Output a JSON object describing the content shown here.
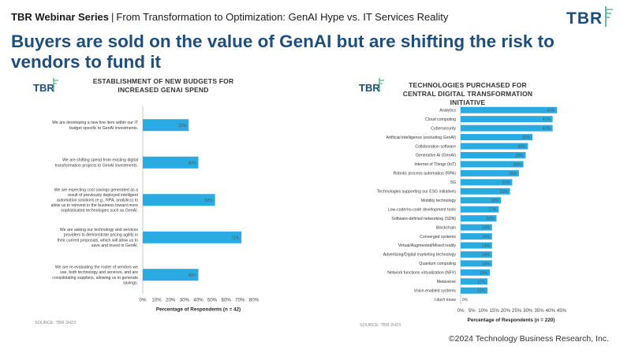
{
  "header": {
    "series": "TBR Webinar Series",
    "separator": "|",
    "subtitle": "From Transformation to Optimization: GenAI Hype vs. IT Services Reality"
  },
  "logo": {
    "text": "TBR"
  },
  "headline": "Buyers are sold on the value of GenAI but are shifting the risk to vendors to fund it",
  "colors": {
    "bar": "#29abe2",
    "title": "#1f4e79",
    "axis": "#bbbbbb"
  },
  "footer": "©2024 Technology Business Research, Inc.",
  "chart_data": [
    {
      "type": "bar",
      "orientation": "horizontal",
      "logo": "TBR",
      "title": "ESTABLISHMENT OF NEW BUDGETS FOR INCREASED GENAI SPEND",
      "categories": [
        "We are developing a new line item within our IT budget specific to GenAI investments.",
        "We are shifting spend from existing digital transformation projects to GenAI investments.",
        "We are expecting cost savings generated as a result of previously deployed intelligent automation solutions (e.g., RPA, analytics) to allow us to reinvest in the business toward more sophisticated technologies such as GenAI.",
        "We are asking our technology and services providers to demonstrate pricing agility in their current proposals, which will allow us to save and invest in GenAI.",
        "We are re-evaluating the roster of vendors we use, both technology and services, and are consolidating suppliers, allowing us to generate savings."
      ],
      "values": [
        33,
        40,
        52,
        71,
        40
      ],
      "value_labels": [
        "33%",
        "40%",
        "52%",
        "71%",
        "40%"
      ],
      "xlim": [
        0,
        80
      ],
      "xticks": [
        "0%",
        "10%",
        "20%",
        "30%",
        "40%",
        "50%",
        "60%",
        "70%",
        "80%"
      ],
      "xlabel": "Percentage of Respondents (n = 42)",
      "source": "SOURCE: TBR 2H23",
      "grid": false
    },
    {
      "type": "bar",
      "orientation": "horizontal",
      "logo": "TBR",
      "title": "TECHNOLOGIES PURCHASED FOR CENTRAL DIGITAL TRANSFORMATION INITIATIVE",
      "categories": [
        "Analytics",
        "Cloud computing",
        "Cybersecurity",
        "Artificial intelligence (excluding GenAI)",
        "Collaboration software",
        "Generative AI (GenAI)",
        "Internet of Things (IoT)",
        "Robotic process automation (RPA)",
        "5G",
        "Technologies supporting our ESG initiatives",
        "Mobility technology",
        "Low-code/no-code development tools",
        "Software-defined networking (SDN)",
        "Blockchain",
        "Converged systems",
        "Virtual/Augmented/Mixed reality",
        "Advertising/Digital marketing technology",
        "Quantum computing",
        "Network functions virtualization (NFV)",
        "Metaverse",
        "Voice-enabled systems",
        "I don't know"
      ],
      "values": [
        43,
        41,
        41,
        32,
        30,
        29,
        28,
        26,
        23,
        22,
        18,
        17,
        16,
        14,
        14,
        14,
        14,
        14,
        13,
        12,
        12,
        0
      ],
      "value_labels": [
        "43%",
        "41%",
        "41%",
        "32%",
        "30%",
        "29%",
        "28%",
        "26%",
        "23%",
        "22%",
        "18%",
        "17%",
        "16%",
        "14%",
        "14%",
        "14%",
        "14%",
        "14%",
        "13%",
        "12%",
        "12%",
        "0%"
      ],
      "xlim": [
        0,
        45
      ],
      "xticks": [
        "0%",
        "5%",
        "10%",
        "15%",
        "20%",
        "25%",
        "30%",
        "35%",
        "40%",
        "45%"
      ],
      "xlabel": "Percentage of Respondents (n = 220)",
      "source": "SOURCE: TBR 2H23",
      "grid": false
    }
  ]
}
